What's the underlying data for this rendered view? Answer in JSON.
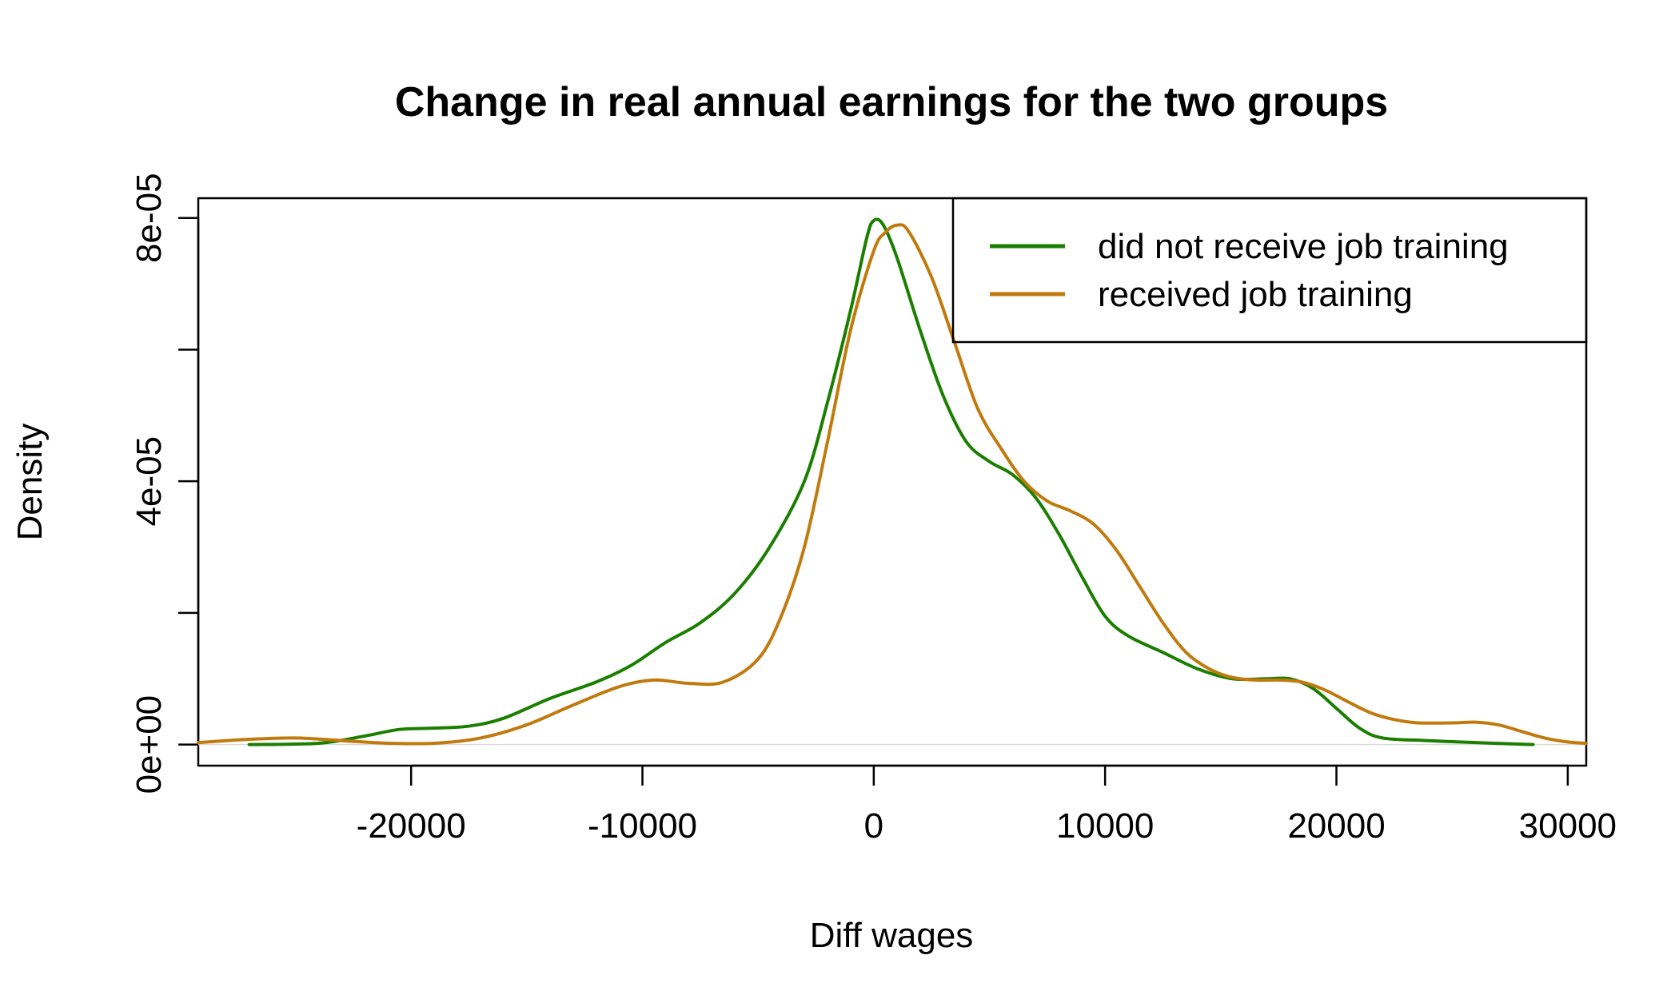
{
  "chart_data": {
    "type": "line",
    "title": "Change in real annual earnings for the two groups",
    "xlabel": "Diff wages",
    "ylabel": "Density",
    "xlim": [
      -29200,
      30800
    ],
    "ylim": [
      -3.2e-06,
      8.3e-05
    ],
    "x_ticks": [
      -20000,
      -10000,
      0,
      10000,
      20000,
      30000
    ],
    "x_tick_labels": [
      "-20000",
      "-10000",
      "0",
      "10000",
      "20000",
      "30000"
    ],
    "y_ticks": [
      0,
      2e-05,
      4e-05,
      6e-05,
      8e-05
    ],
    "y_tick_labels": [
      "0e+00",
      "",
      "4e-05",
      "",
      "8e-05"
    ],
    "legend_position": "top-right",
    "series": [
      {
        "name": "did not receive job training",
        "color": "#1a7f00",
        "points": [
          [
            -27000,
            0
          ],
          [
            -24000,
            2e-07
          ],
          [
            -22000,
            1.3e-06
          ],
          [
            -20500,
            2.3e-06
          ],
          [
            -19000,
            2.5e-06
          ],
          [
            -17500,
            2.8e-06
          ],
          [
            -16000,
            4e-06
          ],
          [
            -14000,
            7e-06
          ],
          [
            -12000,
            9.5e-06
          ],
          [
            -10500,
            1.2e-05
          ],
          [
            -9000,
            1.55e-05
          ],
          [
            -7500,
            1.85e-05
          ],
          [
            -6000,
            2.3e-05
          ],
          [
            -4500,
            3e-05
          ],
          [
            -3000,
            4e-05
          ],
          [
            -2000,
            5.2e-05
          ],
          [
            -1000,
            6.6e-05
          ],
          [
            -300,
            7.7e-05
          ],
          [
            0,
            7.96e-05
          ],
          [
            400,
            7.9e-05
          ],
          [
            1000,
            7.4e-05
          ],
          [
            2000,
            6.3e-05
          ],
          [
            3000,
            5.3e-05
          ],
          [
            4000,
            4.6e-05
          ],
          [
            5000,
            4.3e-05
          ],
          [
            6000,
            4.1e-05
          ],
          [
            7000,
            3.75e-05
          ],
          [
            8000,
            3.2e-05
          ],
          [
            9000,
            2.55e-05
          ],
          [
            10000,
            1.95e-05
          ],
          [
            11000,
            1.65e-05
          ],
          [
            12500,
            1.4e-05
          ],
          [
            14000,
            1.15e-05
          ],
          [
            15500,
            1e-05
          ],
          [
            17000,
            1e-05
          ],
          [
            18000,
            1e-05
          ],
          [
            19000,
            8.5e-06
          ],
          [
            20000,
            5.5e-06
          ],
          [
            21000,
            2.5e-06
          ],
          [
            22000,
            1e-06
          ],
          [
            24000,
            6e-07
          ],
          [
            26000,
            3e-07
          ],
          [
            28500,
            0
          ]
        ]
      },
      {
        "name": "received job training",
        "color": "#c07a0e",
        "points": [
          [
            -29200,
            3e-07
          ],
          [
            -27000,
            8e-07
          ],
          [
            -25000,
            1e-06
          ],
          [
            -23000,
            6e-07
          ],
          [
            -21000,
            2e-07
          ],
          [
            -19000,
            2e-07
          ],
          [
            -17000,
            1e-06
          ],
          [
            -15000,
            3e-06
          ],
          [
            -13000,
            6e-06
          ],
          [
            -11000,
            8.8e-06
          ],
          [
            -9500,
            9.8e-06
          ],
          [
            -8000,
            9.3e-06
          ],
          [
            -6500,
            9.5e-06
          ],
          [
            -5000,
            1.3e-05
          ],
          [
            -4000,
            1.95e-05
          ],
          [
            -3000,
            3e-05
          ],
          [
            -2000,
            4.6e-05
          ],
          [
            -1000,
            6.3e-05
          ],
          [
            0,
            7.5e-05
          ],
          [
            500,
            7.78e-05
          ],
          [
            1000,
            7.89e-05
          ],
          [
            1500,
            7.8e-05
          ],
          [
            2500,
            7.1e-05
          ],
          [
            3500,
            6.1e-05
          ],
          [
            4500,
            5.1e-05
          ],
          [
            5500,
            4.5e-05
          ],
          [
            6500,
            4e-05
          ],
          [
            7500,
            3.7e-05
          ],
          [
            8500,
            3.55e-05
          ],
          [
            9500,
            3.35e-05
          ],
          [
            10500,
            2.95e-05
          ],
          [
            11500,
            2.4e-05
          ],
          [
            12500,
            1.85e-05
          ],
          [
            13500,
            1.4e-05
          ],
          [
            14500,
            1.15e-05
          ],
          [
            15500,
            1.02e-05
          ],
          [
            16500,
            9.8e-06
          ],
          [
            17500,
            9.8e-06
          ],
          [
            18500,
            9.5e-06
          ],
          [
            19500,
            8.3e-06
          ],
          [
            20500,
            6.5e-06
          ],
          [
            21500,
            4.8e-06
          ],
          [
            22500,
            3.8e-06
          ],
          [
            23500,
            3.3e-06
          ],
          [
            25000,
            3.3e-06
          ],
          [
            26000,
            3.4e-06
          ],
          [
            27000,
            3e-06
          ],
          [
            28000,
            2e-06
          ],
          [
            29000,
            1e-06
          ],
          [
            30000,
            4e-07
          ],
          [
            30800,
            2e-07
          ]
        ]
      }
    ]
  }
}
